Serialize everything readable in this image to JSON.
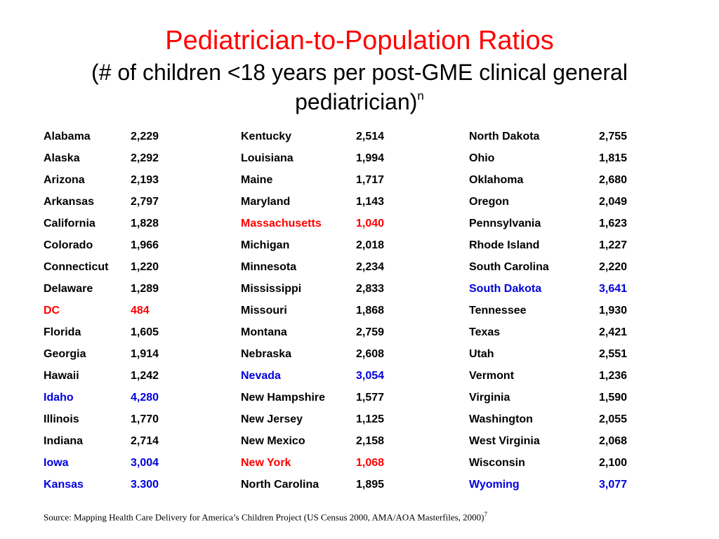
{
  "title": "Pediatrician-to-Population Ratios",
  "subtitle": "(# of children <18 years per post-GME clinical general pediatrician)",
  "subtitle_sup": "n",
  "columns": [
    [
      {
        "state": "Alabama",
        "value": "2,229",
        "color": "black"
      },
      {
        "state": "Alaska",
        "value": "2,292",
        "color": "black"
      },
      {
        "state": "Arizona",
        "value": "2,193",
        "color": "black"
      },
      {
        "state": "Arkansas",
        "value": "2,797",
        "color": "black"
      },
      {
        "state": "California",
        "value": "1,828",
        "color": "black"
      },
      {
        "state": "Colorado",
        "value": "1,966",
        "color": "black"
      },
      {
        "state": "Connecticut",
        "value": "1,220",
        "color": "black"
      },
      {
        "state": "Delaware",
        "value": "1,289",
        "color": "black"
      },
      {
        "state": "DC",
        "value": "484",
        "color": "red"
      },
      {
        "state": "Florida",
        "value": "1,605",
        "color": "black"
      },
      {
        "state": "Georgia",
        "value": "1,914",
        "color": "black"
      },
      {
        "state": "Hawaii",
        "value": "1,242",
        "color": "black"
      },
      {
        "state": "Idaho",
        "value": "4,280",
        "color": "blue"
      },
      {
        "state": "Illinois",
        "value": "1,770",
        "color": "black"
      },
      {
        "state": "Indiana",
        "value": "2,714",
        "color": "black"
      },
      {
        "state": "Iowa",
        "value": "3,004",
        "color": "blue"
      },
      {
        "state": "Kansas",
        "value": "3.300",
        "color": "blue"
      }
    ],
    [
      {
        "state": "Kentucky",
        "value": "2,514",
        "color": "black"
      },
      {
        "state": "Louisiana",
        "value": "1,994",
        "color": "black"
      },
      {
        "state": "Maine",
        "value": "1,717",
        "color": "black"
      },
      {
        "state": "Maryland",
        "value": "1,143",
        "color": "black"
      },
      {
        "state": "Massachusetts",
        "value": "1,040",
        "color": "red"
      },
      {
        "state": "Michigan",
        "value": "2,018",
        "color": "black"
      },
      {
        "state": "Minnesota",
        "value": "2,234",
        "color": "black"
      },
      {
        "state": "Mississippi",
        "value": "2,833",
        "color": "black"
      },
      {
        "state": "Missouri",
        "value": "1,868",
        "color": "black"
      },
      {
        "state": "Montana",
        "value": "2,759",
        "color": "black"
      },
      {
        "state": "Nebraska",
        "value": "2,608",
        "color": "black"
      },
      {
        "state": "Nevada",
        "value": "3,054",
        "color": "blue"
      },
      {
        "state": "New Hampshire",
        "value": "1,577",
        "color": "black"
      },
      {
        "state": "New Jersey",
        "value": "1,125",
        "color": "black"
      },
      {
        "state": "New Mexico",
        "value": "2,158",
        "color": "black"
      },
      {
        "state": "New York",
        "value": "1,068",
        "color": "red"
      },
      {
        "state": "North Carolina",
        "value": "1,895",
        "color": "black"
      }
    ],
    [
      {
        "state": "North Dakota",
        "value": "2,755",
        "color": "black"
      },
      {
        "state": "Ohio",
        "value": "1,815",
        "color": "black"
      },
      {
        "state": "Oklahoma",
        "value": "2,680",
        "color": "black"
      },
      {
        "state": "Oregon",
        "value": "2,049",
        "color": "black"
      },
      {
        "state": "Pennsylvania",
        "value": "1,623",
        "color": "black"
      },
      {
        "state": "Rhode Island",
        "value": "1,227",
        "color": "black"
      },
      {
        "state": "South Carolina",
        "value": "2,220",
        "color": "black"
      },
      {
        "state": "South Dakota",
        "value": "3,641",
        "color": "blue"
      },
      {
        "state": "Tennessee",
        "value": "1,930",
        "color": "black"
      },
      {
        "state": "Texas",
        "value": "2,421",
        "color": "black"
      },
      {
        "state": "Utah",
        "value": "2,551",
        "color": "black"
      },
      {
        "state": "Vermont",
        "value": "1,236",
        "color": "black"
      },
      {
        "state": "Virginia",
        "value": "1,590",
        "color": "black"
      },
      {
        "state": "Washington",
        "value": "2,055",
        "color": "black"
      },
      {
        "state": "West Virginia",
        "value": "2,068",
        "color": "black"
      },
      {
        "state": "Wisconsin",
        "value": "2,100",
        "color": "black"
      },
      {
        "state": "Wyoming",
        "value": "3,077",
        "color": "blue"
      }
    ]
  ],
  "source": "Source: Mapping Health Care Delivery for America’s Children Project (US Census 2000, AMA/AOA Masterfiles, 2000)",
  "source_sup": "7"
}
